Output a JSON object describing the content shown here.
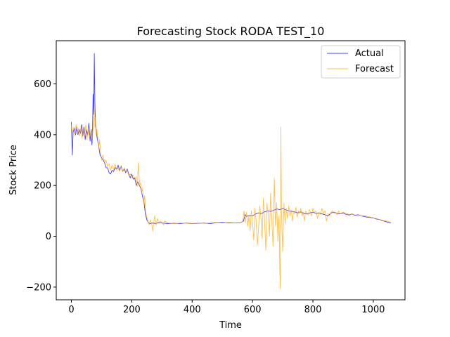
{
  "chart_data": {
    "type": "line",
    "title": "Forecasting Stock RODA TEST_10",
    "xlabel": "Time",
    "ylabel": "Stock Price",
    "xlim": [
      -50,
      1105
    ],
    "ylim": [
      -250,
      770
    ],
    "xticks": [
      0,
      200,
      400,
      600,
      800,
      1000
    ],
    "yticks": [
      -200,
      0,
      200,
      400,
      600
    ],
    "ytick_labels": [
      "−200",
      "0",
      "200",
      "400",
      "600"
    ],
    "grid": false,
    "legend_position": "top-right",
    "series": [
      {
        "name": "Actual",
        "color": "#0000ff",
        "opacity": 0.75,
        "points": [
          [
            0,
            450
          ],
          [
            3,
            320
          ],
          [
            6,
            410
          ],
          [
            10,
            425
          ],
          [
            14,
            400
          ],
          [
            18,
            430
          ],
          [
            22,
            400
          ],
          [
            26,
            420
          ],
          [
            30,
            405
          ],
          [
            34,
            440
          ],
          [
            38,
            395
          ],
          [
            42,
            430
          ],
          [
            46,
            380
          ],
          [
            50,
            420
          ],
          [
            54,
            400
          ],
          [
            58,
            445
          ],
          [
            62,
            375
          ],
          [
            66,
            420
          ],
          [
            68,
            360
          ],
          [
            70,
            400
          ],
          [
            72,
            560
          ],
          [
            74,
            480
          ],
          [
            76,
            720
          ],
          [
            78,
            520
          ],
          [
            80,
            440
          ],
          [
            85,
            390
          ],
          [
            90,
            360
          ],
          [
            95,
            320
          ],
          [
            100,
            310
          ],
          [
            105,
            300
          ],
          [
            110,
            290
          ],
          [
            115,
            270
          ],
          [
            120,
            270
          ],
          [
            125,
            250
          ],
          [
            130,
            245
          ],
          [
            135,
            260
          ],
          [
            140,
            255
          ],
          [
            145,
            270
          ],
          [
            150,
            265
          ],
          [
            155,
            280
          ],
          [
            160,
            260
          ],
          [
            165,
            275
          ],
          [
            170,
            255
          ],
          [
            175,
            265
          ],
          [
            180,
            250
          ],
          [
            185,
            265
          ],
          [
            190,
            245
          ],
          [
            195,
            230
          ],
          [
            200,
            245
          ],
          [
            205,
            225
          ],
          [
            210,
            230
          ],
          [
            215,
            200
          ],
          [
            220,
            215
          ],
          [
            225,
            200
          ],
          [
            230,
            190
          ],
          [
            235,
            160
          ],
          [
            240,
            140
          ],
          [
            245,
            90
          ],
          [
            250,
            65
          ],
          [
            255,
            55
          ],
          [
            260,
            50
          ],
          [
            270,
            52
          ],
          [
            280,
            50
          ],
          [
            290,
            55
          ],
          [
            300,
            52
          ],
          [
            320,
            50
          ],
          [
            340,
            51
          ],
          [
            360,
            50
          ],
          [
            380,
            52
          ],
          [
            400,
            50
          ],
          [
            420,
            51
          ],
          [
            440,
            52
          ],
          [
            460,
            50
          ],
          [
            480,
            54
          ],
          [
            500,
            55
          ],
          [
            520,
            53
          ],
          [
            540,
            52
          ],
          [
            560,
            54
          ],
          [
            570,
            60
          ],
          [
            575,
            85
          ],
          [
            580,
            78
          ],
          [
            590,
            82
          ],
          [
            600,
            80
          ],
          [
            610,
            88
          ],
          [
            620,
            92
          ],
          [
            630,
            90
          ],
          [
            640,
            96
          ],
          [
            650,
            100
          ],
          [
            660,
            98
          ],
          [
            670,
            102
          ],
          [
            680,
            108
          ],
          [
            690,
            105
          ],
          [
            700,
            110
          ],
          [
            710,
            104
          ],
          [
            720,
            100
          ],
          [
            730,
            98
          ],
          [
            740,
            96
          ],
          [
            750,
            92
          ],
          [
            760,
            96
          ],
          [
            770,
            90
          ],
          [
            780,
            88
          ],
          [
            790,
            92
          ],
          [
            800,
            95
          ],
          [
            810,
            90
          ],
          [
            820,
            92
          ],
          [
            830,
            88
          ],
          [
            840,
            85
          ],
          [
            850,
            80
          ],
          [
            860,
            92
          ],
          [
            870,
            95
          ],
          [
            880,
            90
          ],
          [
            890,
            88
          ],
          [
            900,
            92
          ],
          [
            910,
            86
          ],
          [
            920,
            84
          ],
          [
            930,
            88
          ],
          [
            940,
            82
          ],
          [
            950,
            85
          ],
          [
            960,
            80
          ],
          [
            970,
            78
          ],
          [
            980,
            75
          ],
          [
            990,
            74
          ],
          [
            1000,
            72
          ],
          [
            1010,
            68
          ],
          [
            1020,
            66
          ],
          [
            1030,
            62
          ],
          [
            1040,
            58
          ],
          [
            1050,
            55
          ],
          [
            1058,
            52
          ]
        ]
      },
      {
        "name": "Forecast",
        "color": "#ffa500",
        "opacity": 0.7,
        "points": [
          [
            0,
            440
          ],
          [
            4,
            405
          ],
          [
            8,
            430
          ],
          [
            12,
            395
          ],
          [
            16,
            440
          ],
          [
            20,
            405
          ],
          [
            24,
            425
          ],
          [
            28,
            395
          ],
          [
            32,
            435
          ],
          [
            36,
            385
          ],
          [
            40,
            425
          ],
          [
            44,
            395
          ],
          [
            48,
            440
          ],
          [
            52,
            380
          ],
          [
            56,
            430
          ],
          [
            60,
            390
          ],
          [
            64,
            410
          ],
          [
            68,
            385
          ],
          [
            72,
            420
          ],
          [
            74,
            460
          ],
          [
            76,
            500
          ],
          [
            78,
            430
          ],
          [
            80,
            470
          ],
          [
            82,
            400
          ],
          [
            85,
            420
          ],
          [
            88,
            380
          ],
          [
            91,
            350
          ],
          [
            94,
            380
          ],
          [
            97,
            330
          ],
          [
            100,
            300
          ],
          [
            105,
            320
          ],
          [
            110,
            290
          ],
          [
            115,
            300
          ],
          [
            120,
            275
          ],
          [
            125,
            285
          ],
          [
            130,
            260
          ],
          [
            135,
            280
          ],
          [
            140,
            260
          ],
          [
            145,
            285
          ],
          [
            150,
            260
          ],
          [
            155,
            270
          ],
          [
            160,
            255
          ],
          [
            165,
            280
          ],
          [
            170,
            255
          ],
          [
            175,
            270
          ],
          [
            180,
            255
          ],
          [
            185,
            260
          ],
          [
            190,
            240
          ],
          [
            195,
            245
          ],
          [
            200,
            230
          ],
          [
            205,
            240
          ],
          [
            210,
            220
          ],
          [
            215,
            235
          ],
          [
            218,
            195
          ],
          [
            222,
            290
          ],
          [
            226,
            200
          ],
          [
            230,
            210
          ],
          [
            233,
            170
          ],
          [
            236,
            190
          ],
          [
            240,
            130
          ],
          [
            243,
            160
          ],
          [
            246,
            95
          ],
          [
            250,
            75
          ],
          [
            254,
            60
          ],
          [
            258,
            45
          ],
          [
            262,
            65
          ],
          [
            266,
            50
          ],
          [
            270,
            20
          ],
          [
            273,
            55
          ],
          [
            276,
            80
          ],
          [
            280,
            45
          ],
          [
            285,
            70
          ],
          [
            290,
            50
          ],
          [
            295,
            60
          ],
          [
            300,
            55
          ],
          [
            305,
            45
          ],
          [
            310,
            60
          ],
          [
            320,
            52
          ],
          [
            340,
            50
          ],
          [
            360,
            52
          ],
          [
            380,
            51
          ],
          [
            400,
            50
          ],
          [
            420,
            52
          ],
          [
            440,
            51
          ],
          [
            460,
            52
          ],
          [
            480,
            55
          ],
          [
            500,
            52
          ],
          [
            520,
            55
          ],
          [
            540,
            53
          ],
          [
            560,
            54
          ],
          [
            568,
            60
          ],
          [
            572,
            100
          ],
          [
            576,
            55
          ],
          [
            580,
            95
          ],
          [
            584,
            40
          ],
          [
            588,
            80
          ],
          [
            592,
            20
          ],
          [
            596,
            100
          ],
          [
            600,
            60
          ],
          [
            604,
            -15
          ],
          [
            608,
            110
          ],
          [
            612,
            60
          ],
          [
            616,
            -35
          ],
          [
            620,
            30
          ],
          [
            624,
            120
          ],
          [
            628,
            70
          ],
          [
            632,
            -10
          ],
          [
            636,
            150
          ],
          [
            640,
            60
          ],
          [
            644,
            -55
          ],
          [
            648,
            130
          ],
          [
            652,
            85
          ],
          [
            656,
            0
          ],
          [
            660,
            170
          ],
          [
            664,
            60
          ],
          [
            668,
            -40
          ],
          [
            672,
            230
          ],
          [
            676,
            40
          ],
          [
            680,
            130
          ],
          [
            684,
            -20
          ],
          [
            688,
            80
          ],
          [
            690,
            -120
          ],
          [
            692,
            -205
          ],
          [
            694,
            430
          ],
          [
            696,
            90
          ],
          [
            700,
            -60
          ],
          [
            704,
            130
          ],
          [
            708,
            50
          ],
          [
            712,
            110
          ],
          [
            716,
            70
          ],
          [
            720,
            120
          ],
          [
            724,
            80
          ],
          [
            728,
            105
          ],
          [
            732,
            60
          ],
          [
            736,
            100
          ],
          [
            740,
            88
          ],
          [
            744,
            115
          ],
          [
            748,
            75
          ],
          [
            752,
            100
          ],
          [
            756,
            90
          ],
          [
            760,
            110
          ],
          [
            764,
            80
          ],
          [
            768,
            95
          ],
          [
            772,
            60
          ],
          [
            776,
            100
          ],
          [
            780,
            90
          ],
          [
            784,
            85
          ],
          [
            788,
            105
          ],
          [
            792,
            95
          ],
          [
            796,
            80
          ],
          [
            800,
            110
          ],
          [
            805,
            95
          ],
          [
            810,
            100
          ],
          [
            815,
            70
          ],
          [
            820,
            95
          ],
          [
            825,
            85
          ],
          [
            830,
            110
          ],
          [
            835,
            90
          ],
          [
            840,
            100
          ],
          [
            845,
            60
          ],
          [
            850,
            90
          ],
          [
            855,
            80
          ],
          [
            860,
            95
          ],
          [
            865,
            100
          ],
          [
            870,
            90
          ],
          [
            875,
            95
          ],
          [
            880,
            85
          ],
          [
            885,
            100
          ],
          [
            890,
            88
          ],
          [
            895,
            92
          ],
          [
            900,
            95
          ],
          [
            910,
            90
          ],
          [
            920,
            86
          ],
          [
            930,
            88
          ],
          [
            940,
            84
          ],
          [
            950,
            86
          ],
          [
            960,
            80
          ],
          [
            970,
            82
          ],
          [
            980,
            78
          ],
          [
            990,
            76
          ],
          [
            1000,
            72
          ],
          [
            1010,
            70
          ],
          [
            1020,
            66
          ],
          [
            1030,
            60
          ],
          [
            1040,
            62
          ],
          [
            1050,
            58
          ],
          [
            1058,
            56
          ]
        ]
      }
    ]
  }
}
